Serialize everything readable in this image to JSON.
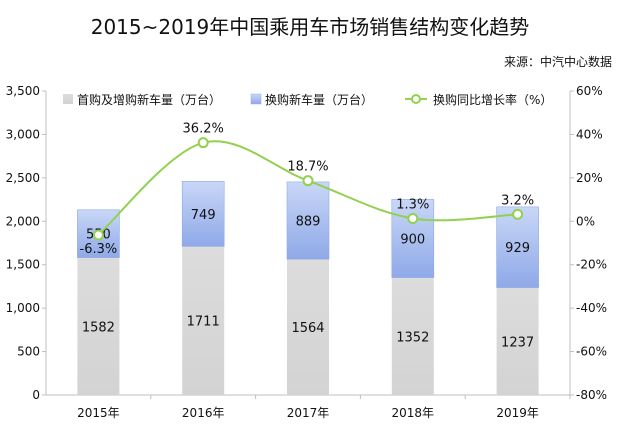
{
  "chart_data": {
    "type": "bar",
    "title": "2015~2019年中国乘用车市场销售结构变化趋势",
    "source": "来源：中汽中心数据",
    "categories": [
      "2015年",
      "2016年",
      "2017年",
      "2018年",
      "2019年"
    ],
    "series": [
      {
        "name": "首购及增购新车量（万台）",
        "kind": "stacked-bar",
        "color": "#d9d9d9",
        "values": [
          1582,
          1711,
          1564,
          1352,
          1237
        ]
      },
      {
        "name": "换购新车量（万台）",
        "kind": "stacked-bar",
        "color": "#a9bff0",
        "values": [
          550,
          749,
          889,
          900,
          929
        ]
      },
      {
        "name": "换购同比增长率（%）",
        "kind": "line",
        "axis": "right",
        "color": "#92d050",
        "values": [
          -6.3,
          36.2,
          18.7,
          1.3,
          3.2
        ],
        "labels": [
          "-6.3%",
          "36.2%",
          "18.7%",
          "1.3%",
          "3.2%"
        ]
      }
    ],
    "y_left": {
      "min": 0,
      "max": 3500,
      "step": 500,
      "tick_labels": [
        "0",
        "500",
        "1,000",
        "1,500",
        "2,000",
        "2,500",
        "3,000",
        "3,500"
      ]
    },
    "y_right": {
      "min": -80,
      "max": 60,
      "step": 20,
      "tick_labels": [
        "-80%",
        "-60%",
        "-40%",
        "-20%",
        "0%",
        "20%",
        "40%",
        "60%"
      ]
    },
    "grid": false,
    "legend_position": "top"
  }
}
